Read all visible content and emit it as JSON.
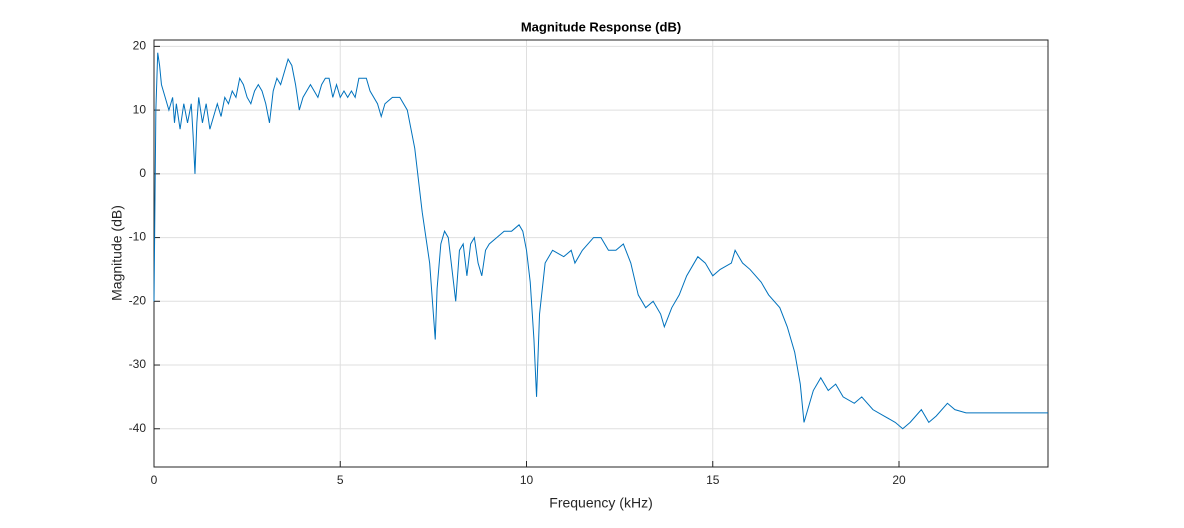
{
  "chart_data": {
    "type": "line",
    "title": "Magnitude Response (dB)",
    "x_label": "Frequency (kHz)",
    "y_label": "Magnitude (dB)",
    "x": [
      0,
      0.05,
      0.1,
      0.15,
      0.2,
      0.3,
      0.4,
      0.5,
      0.55,
      0.6,
      0.7,
      0.8,
      0.9,
      1.0,
      1.05,
      1.1,
      1.15,
      1.2,
      1.3,
      1.4,
      1.5,
      1.6,
      1.7,
      1.8,
      1.9,
      2.0,
      2.1,
      2.2,
      2.3,
      2.4,
      2.5,
      2.6,
      2.7,
      2.8,
      2.9,
      3.0,
      3.1,
      3.2,
      3.3,
      3.4,
      3.5,
      3.6,
      3.7,
      3.8,
      3.9,
      4.0,
      4.2,
      4.4,
      4.5,
      4.6,
      4.7,
      4.8,
      4.9,
      5.0,
      5.1,
      5.2,
      5.3,
      5.4,
      5.5,
      5.7,
      5.8,
      6.0,
      6.1,
      6.2,
      6.4,
      6.6,
      6.8,
      7.0,
      7.2,
      7.4,
      7.5,
      7.55,
      7.6,
      7.7,
      7.8,
      7.9,
      8.0,
      8.1,
      8.2,
      8.3,
      8.4,
      8.5,
      8.6,
      8.7,
      8.8,
      8.9,
      9.0,
      9.2,
      9.4,
      9.6,
      9.8,
      9.9,
      10.0,
      10.1,
      10.2,
      10.27,
      10.35,
      10.5,
      10.7,
      11.0,
      11.2,
      11.3,
      11.5,
      11.8,
      12.0,
      12.2,
      12.4,
      12.6,
      12.8,
      13.0,
      13.2,
      13.4,
      13.6,
      13.7,
      13.9,
      14.1,
      14.3,
      14.5,
      14.6,
      14.8,
      15.0,
      15.2,
      15.5,
      15.6,
      15.8,
      16.0,
      16.3,
      16.5,
      16.8,
      17.0,
      17.2,
      17.35,
      17.45,
      17.55,
      17.7,
      17.9,
      18.1,
      18.3,
      18.5,
      18.8,
      19.0,
      19.3,
      19.6,
      19.9,
      20.1,
      20.3,
      20.6,
      20.8,
      21.0,
      21.3,
      21.5,
      21.8,
      22.5,
      24
    ],
    "series": [
      {
        "name": "Magnitude",
        "color": "#0072bd",
        "values": [
          -20,
          10,
          19,
          17,
          14,
          12,
          10,
          12,
          8,
          11,
          7,
          11,
          8,
          11,
          6,
          0,
          8,
          12,
          8,
          11,
          7,
          9,
          11,
          9,
          12,
          11,
          13,
          12,
          15,
          14,
          12,
          11,
          13,
          14,
          13,
          11,
          8,
          13,
          15,
          14,
          16,
          18,
          17,
          14,
          10,
          12,
          14,
          12,
          14,
          15,
          15,
          12,
          14,
          12,
          13,
          12,
          13,
          12,
          15,
          15,
          13,
          11,
          9,
          11,
          12,
          12,
          10,
          4,
          -6,
          -14,
          -22,
          -26,
          -18,
          -11,
          -9,
          -10,
          -15,
          -20,
          -12,
          -11,
          -16,
          -11,
          -10,
          -14,
          -16,
          -12,
          -11,
          -10,
          -9,
          -9,
          -8,
          -9,
          -12,
          -17,
          -26,
          -35,
          -22,
          -14,
          -12,
          -13,
          -12,
          -14,
          -12,
          -10,
          -10,
          -12,
          -12,
          -11,
          -14,
          -19,
          -21,
          -20,
          -22,
          -24,
          -21,
          -19,
          -16,
          -14,
          -13,
          -14,
          -16,
          -15,
          -14,
          -12,
          -14,
          -15,
          -17,
          -19,
          -21,
          -24,
          -28,
          -33,
          -39,
          -37,
          -34,
          -32,
          -34,
          -33,
          -35,
          -36,
          -35,
          -37,
          -38,
          -39,
          -40,
          -39,
          -37,
          -39,
          -38,
          -36,
          -37,
          -37.5,
          -37.5,
          -37.5
        ]
      }
    ],
    "xlim": [
      0,
      24
    ],
    "ylim": [
      -46,
      21
    ],
    "xticks": [
      0,
      5,
      10,
      15,
      20
    ],
    "yticks": [
      -40,
      -30,
      -20,
      -10,
      0,
      10,
      20
    ],
    "grid": true
  }
}
